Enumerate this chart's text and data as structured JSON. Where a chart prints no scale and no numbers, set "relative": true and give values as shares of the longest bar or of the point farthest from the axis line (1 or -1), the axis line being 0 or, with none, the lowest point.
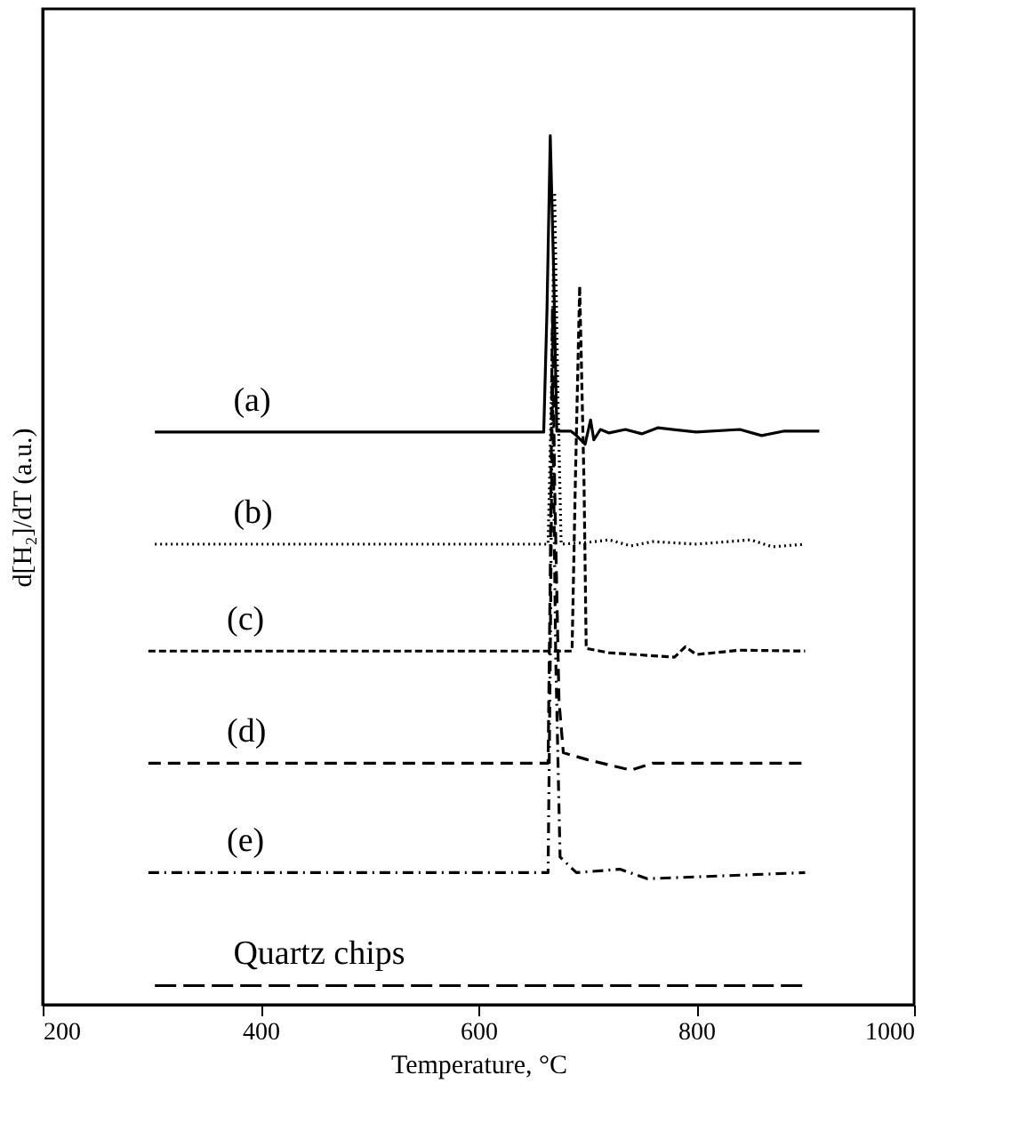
{
  "chart_data": {
    "type": "line",
    "xlabel": "Temperature, °C",
    "ylabel": "d[H₂]/dT (a.u.)",
    "relative": true,
    "xlim": [
      200,
      1000
    ],
    "xticks": [
      200,
      400,
      600,
      800,
      1000
    ],
    "tick_labels": "x",
    "grid": false,
    "marker": "none",
    "series": [
      {
        "name": "(a)",
        "color": "#000000",
        "line_style": "solid",
        "x": [
          303,
          660,
          663,
          666,
          669,
          672,
          685,
          690,
          698,
          703,
          706,
          712,
          720,
          735,
          750,
          765,
          800,
          840,
          860,
          880,
          913
        ],
        "values": [
          0.659,
          0.659,
          0.8,
          1.0,
          0.85,
          0.66,
          0.66,
          0.655,
          0.645,
          0.673,
          0.65,
          0.662,
          0.658,
          0.662,
          0.657,
          0.664,
          0.659,
          0.662,
          0.655,
          0.66,
          0.66
        ]
      },
      {
        "name": "(b)",
        "color": "#000000",
        "line_style": "dotted",
        "x": [
          303,
          664,
          667,
          670,
          673,
          676,
          700,
          720,
          740,
          760,
          800,
          850,
          870,
          900
        ],
        "values": [
          0.53,
          0.53,
          0.7,
          0.935,
          0.7,
          0.53,
          0.532,
          0.535,
          0.528,
          0.533,
          0.53,
          0.535,
          0.527,
          0.53
        ]
      },
      {
        "name": "(c)",
        "color": "#000000",
        "line_style": "dashed",
        "x": [
          297,
          686,
          689,
          693,
          697,
          699,
          720,
          780,
          790,
          800,
          840,
          900
        ],
        "values": [
          0.407,
          0.407,
          0.6,
          0.827,
          0.6,
          0.41,
          0.405,
          0.4,
          0.412,
          0.403,
          0.408,
          0.407
        ]
      },
      {
        "name": "(d)",
        "color": "#000000",
        "line_style": "dashed",
        "x": [
          297,
          664,
          666,
          668,
          670,
          674,
          678,
          700,
          740,
          760,
          900
        ],
        "values": [
          0.278,
          0.278,
          0.5,
          0.8,
          0.6,
          0.35,
          0.29,
          0.282,
          0.27,
          0.278,
          0.278
        ]
      },
      {
        "name": "(e)",
        "color": "#000000",
        "line_style": "dashed",
        "x": [
          297,
          664,
          666,
          668,
          671,
          675,
          690,
          730,
          755,
          900
        ],
        "values": [
          0.152,
          0.152,
          0.4,
          0.72,
          0.4,
          0.17,
          0.152,
          0.156,
          0.145,
          0.152
        ]
      },
      {
        "name": "Quartz chips",
        "color": "#000000",
        "line_style": "dashed",
        "x": [
          303,
          900
        ],
        "values": [
          0.022,
          0.022
        ]
      }
    ]
  }
}
